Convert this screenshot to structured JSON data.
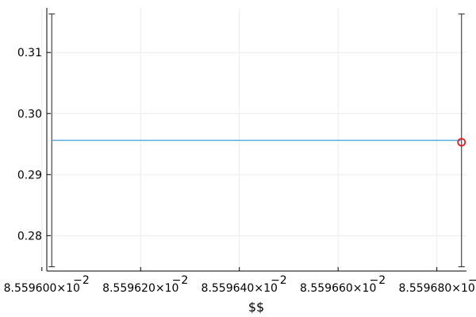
{
  "chart_data": {
    "type": "line",
    "title": "",
    "xlabel": "$$",
    "ylabel": "",
    "xlim": [
      8.559601,
      8.559686
    ],
    "ylim": [
      0.2742,
      0.3173
    ],
    "grid": true,
    "x_tick_values": [
      8.5596,
      8.55962,
      8.55964,
      8.55966,
      8.55968
    ],
    "x_tick_labels": [
      "8.559600×10",
      "8.559620×10",
      "8.559640×10",
      "8.559660×10",
      "8.559680×10"
    ],
    "x_tick_exponent": "−2",
    "y_ticks": [
      0.28,
      0.29,
      0.3,
      0.31
    ],
    "y_tick_labels": [
      "0.28",
      "0.29",
      "0.30",
      "0.31"
    ],
    "series": [
      {
        "color": "#3b9dd6",
        "x": [
          8.559602,
          8.559685
        ],
        "y": [
          0.2956,
          0.2956
        ],
        "error_low": [
          0.2749,
          0.2749
        ],
        "error_high": [
          0.3163,
          0.3163
        ]
      }
    ],
    "highlight_point": {
      "x": 8.559685,
      "y": 0.2953,
      "color": "#e8161e",
      "marker": "circle"
    }
  }
}
